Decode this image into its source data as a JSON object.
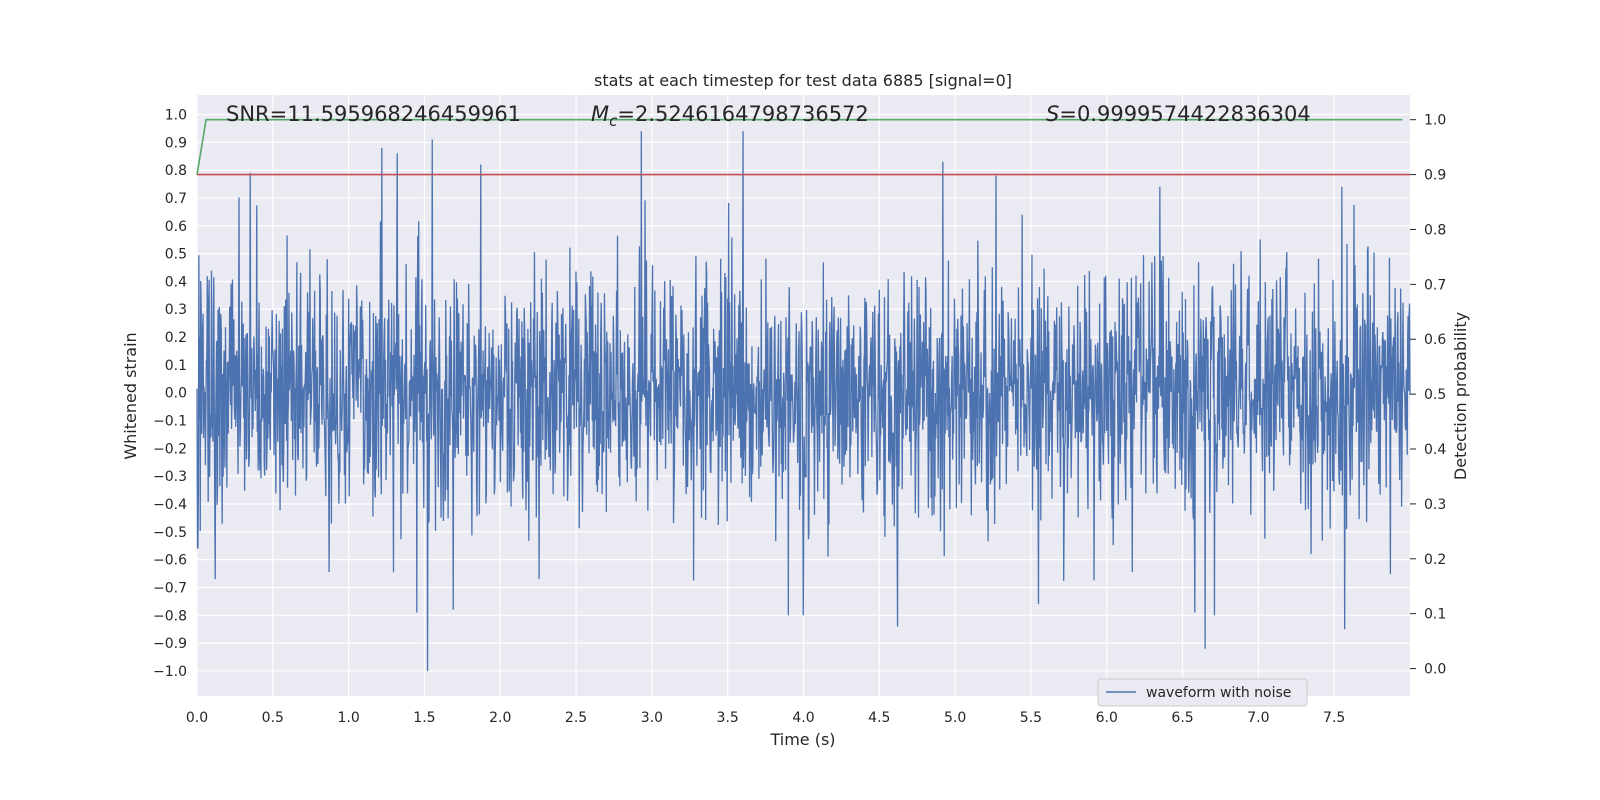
{
  "chart_data": {
    "type": "line",
    "title": "stats at each timestep for test data 6885 [signal=0]",
    "xlabel": "Time (s)",
    "ylabel": "Whitened strain",
    "y2label": "Detection probability",
    "xlim": [
      0.0,
      8.0
    ],
    "ylim": [
      -1.09,
      1.07
    ],
    "y2lim": [
      -0.05,
      1.045
    ],
    "x_ticks": [
      0.0,
      0.5,
      1.0,
      1.5,
      2.0,
      2.5,
      3.0,
      3.5,
      4.0,
      4.5,
      5.0,
      5.5,
      6.0,
      6.5,
      7.0,
      7.5
    ],
    "x_tick_labels": [
      "0.0",
      "0.5",
      "1.0",
      "1.5",
      "2.0",
      "2.5",
      "3.0",
      "3.5",
      "4.0",
      "4.5",
      "5.0",
      "5.5",
      "6.0",
      "6.5",
      "7.0",
      "7.5"
    ],
    "y_ticks": [
      1.0,
      0.9,
      0.8,
      0.7,
      0.6,
      0.5,
      0.4,
      0.3,
      0.2,
      0.1,
      0.0,
      -0.1,
      -0.2,
      -0.3,
      -0.4,
      -0.5,
      -0.6,
      -0.7,
      -0.8,
      -0.9,
      -1.0
    ],
    "y_tick_labels": [
      "1.0",
      "0.9",
      "0.8",
      "0.7",
      "0.6",
      "0.5",
      "0.4",
      "0.3",
      "0.2",
      "0.1",
      "0.0",
      "−0.1",
      "−0.2",
      "−0.3",
      "−0.4",
      "−0.5",
      "−0.6",
      "−0.7",
      "−0.8",
      "−0.9",
      "−1.0"
    ],
    "y2_ticks": [
      1.0,
      0.9,
      0.8,
      0.7,
      0.6,
      0.5,
      0.4,
      0.3,
      0.2,
      0.1,
      0.0
    ],
    "y2_tick_labels": [
      "1.0",
      "0.9",
      "0.8",
      "0.7",
      "0.6",
      "0.5",
      "0.4",
      "0.3",
      "0.2",
      "0.1",
      "0.0"
    ],
    "grid": true,
    "legend_position": "bottom-right",
    "series": [
      {
        "name": "waveform with noise",
        "axis": "left",
        "color": "#4c72b0",
        "kind": "noise",
        "x_range": [
          0.0,
          8.0
        ],
        "approx_std": 0.22,
        "approx_min": -1.0,
        "approx_max": 0.94,
        "peaks": [
          {
            "x": 0.35,
            "y": 0.79
          },
          {
            "x": 1.22,
            "y": 0.88
          },
          {
            "x": 1.32,
            "y": 0.86
          },
          {
            "x": 1.55,
            "y": 0.91
          },
          {
            "x": 1.87,
            "y": 0.82
          },
          {
            "x": 2.93,
            "y": 0.94
          },
          {
            "x": 3.6,
            "y": 0.94
          },
          {
            "x": 4.92,
            "y": 0.83
          },
          {
            "x": 5.27,
            "y": 0.78
          },
          {
            "x": 6.35,
            "y": 0.74
          },
          {
            "x": 7.55,
            "y": 0.74
          },
          {
            "x": 0.12,
            "y": -0.67
          },
          {
            "x": 1.45,
            "y": -0.79
          },
          {
            "x": 1.52,
            "y": -1.0
          },
          {
            "x": 1.69,
            "y": -0.78
          },
          {
            "x": 3.9,
            "y": -0.8
          },
          {
            "x": 4.0,
            "y": -0.8
          },
          {
            "x": 4.62,
            "y": -0.84
          },
          {
            "x": 5.55,
            "y": -0.76
          },
          {
            "x": 6.58,
            "y": -0.79
          },
          {
            "x": 6.65,
            "y": -0.92
          },
          {
            "x": 6.71,
            "y": -0.8
          },
          {
            "x": 7.57,
            "y": -0.85
          }
        ]
      },
      {
        "name": "",
        "axis": "right",
        "color": "#55a868",
        "kind": "line",
        "x": [
          0.0,
          0.06,
          7.95
        ],
        "y": [
          0.9,
          1.0,
          1.0
        ]
      },
      {
        "name": "",
        "axis": "right",
        "color": "#c44e52",
        "kind": "hline",
        "y": 0.9
      }
    ],
    "annotations": [
      {
        "label": "SNR=11.595968246459961",
        "x": 0.2,
        "y": 0.975
      },
      {
        "label_symbol": "M",
        "label_sub": "c",
        "label_value": "=2.5246164798736572",
        "x": 2.6,
        "y": 0.975
      },
      {
        "label_symbol": "S",
        "label_value": "=0.9999574422836304",
        "x": 5.6,
        "y": 0.975
      }
    ]
  }
}
